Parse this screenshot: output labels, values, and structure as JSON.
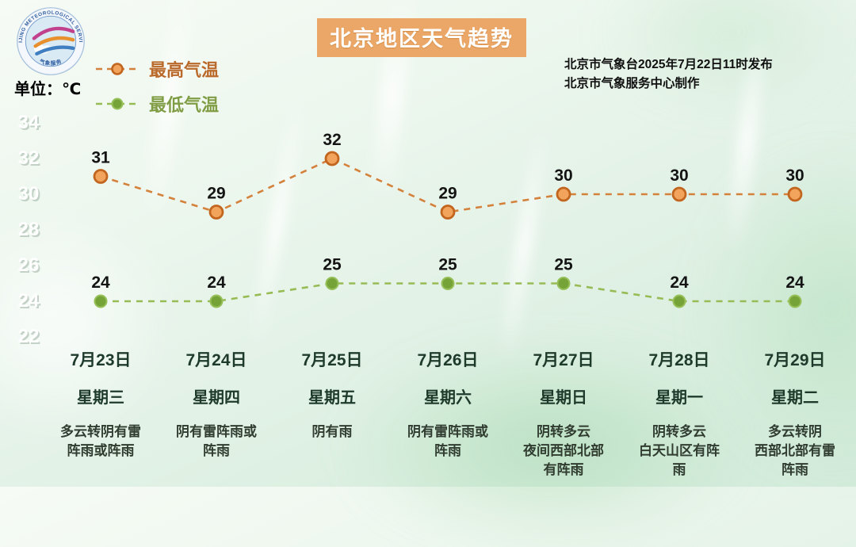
{
  "meta": {
    "title": "北京地区天气趋势",
    "unit_label": "单位：℃",
    "issued_line1": "北京市气象台2025年7月22日11时发布",
    "issued_line2": "北京市气象服务中心制作",
    "logo_ring_text": "BEIJING METEOROLOGICAL SERVICE",
    "logo_bottom_text": "气象服务"
  },
  "legend": [
    {
      "label": "最高气温",
      "text_color": "#b96a2a",
      "marker_fill": "#f2a45c",
      "marker_stroke": "#c2661f",
      "line_color": "#d4813b"
    },
    {
      "label": "最低气温",
      "text_color": "#7f9d44",
      "marker_fill": "#76a338",
      "marker_stroke": "#97c05a",
      "line_color": "#97bb55"
    }
  ],
  "chart_data": {
    "type": "line",
    "title": "北京地区天气趋势",
    "ylabel": "℃",
    "x": [
      "7月23日",
      "7月24日",
      "7月25日",
      "7月26日",
      "7月27日",
      "7月28日",
      "7月29日"
    ],
    "weekdays": [
      "星期三",
      "星期四",
      "星期五",
      "星期六",
      "星期日",
      "星期一",
      "星期二"
    ],
    "weather_lines": [
      [
        "多云转阴有雷",
        "阵雨或阵雨"
      ],
      [
        "阴有雷阵雨或",
        "阵雨"
      ],
      [
        "阴有雨"
      ],
      [
        "阴有雷阵雨或",
        "阵雨"
      ],
      [
        "阴转多云",
        "夜间西部北部",
        "有阵雨"
      ],
      [
        "阴转多云",
        "白天山区有阵",
        "雨"
      ],
      [
        "多云转阴",
        "西部北部有雷",
        "阵雨"
      ]
    ],
    "series": [
      {
        "name": "最高气温",
        "values": [
          31,
          29,
          32,
          29,
          30,
          30,
          30
        ],
        "line_color": "#d4813b",
        "marker_fill": "#f2a45c",
        "marker_stroke": "#c2661f",
        "marker_style": "ring"
      },
      {
        "name": "最低气温",
        "values": [
          24,
          24,
          25,
          25,
          25,
          24,
          24
        ],
        "line_color": "#97bb55",
        "marker_fill": "#76a338",
        "marker_stroke": "#97c05a",
        "marker_style": "dot"
      }
    ],
    "yticks": [
      34,
      32,
      30,
      28,
      26,
      24,
      22
    ],
    "ylim": [
      21,
      35
    ],
    "grid": false,
    "line_style": "dashed",
    "legend_position": "top-left"
  }
}
